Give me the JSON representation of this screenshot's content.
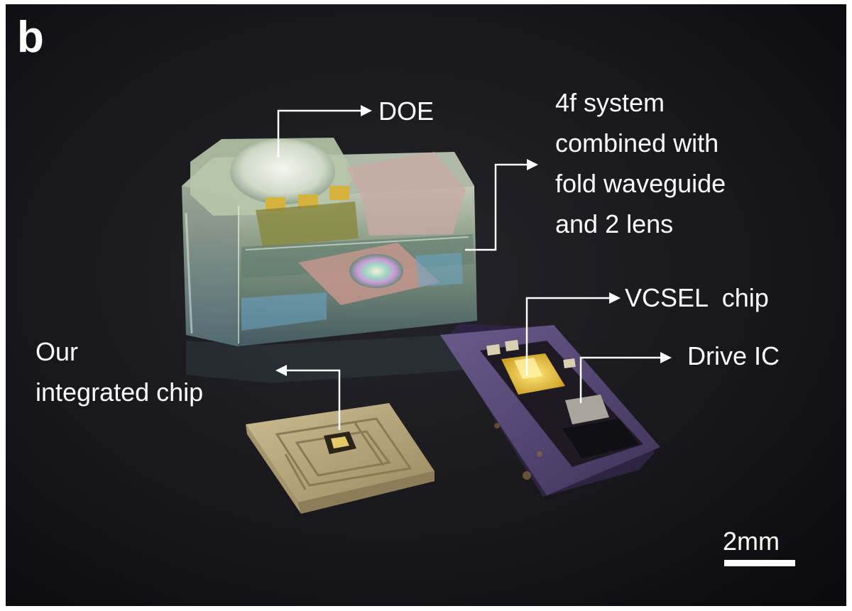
{
  "figure": {
    "panel_letter": "b",
    "labels": {
      "doe": "DOE",
      "system": [
        "4f system",
        "combined with",
        "fold waveguide",
        "and 2 lens"
      ],
      "vcsel": "VCSEL  chip",
      "drive_ic": "Drive IC",
      "integrated": [
        "Our",
        "integrated chip"
      ],
      "scale_bar": "2mm"
    },
    "colors": {
      "background": "#16161a",
      "label_text": "#ffffff",
      "purple_package": "#5a4a78",
      "gold_substrate": "#b8a47c",
      "gold_pads": "#d6b23c"
    }
  }
}
